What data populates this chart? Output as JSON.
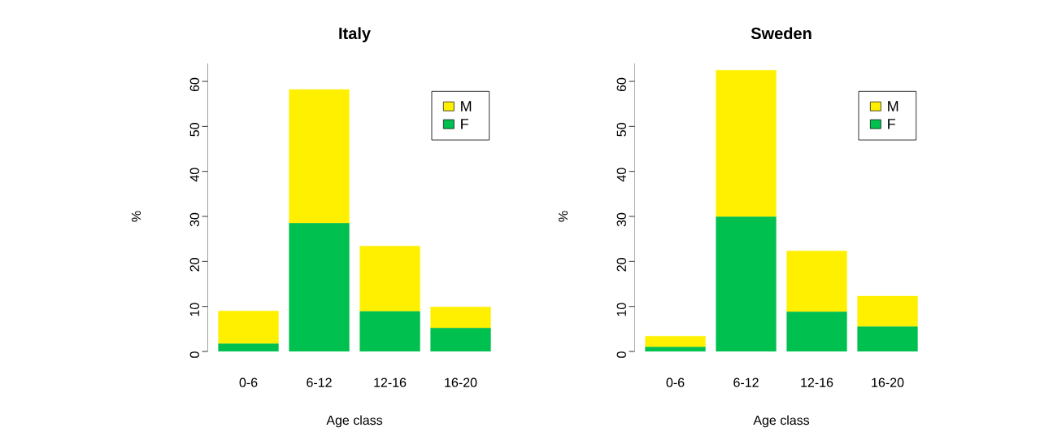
{
  "chart_data": [
    {
      "type": "bar",
      "title": "Italy",
      "xlabel": "Age class",
      "ylabel": "%",
      "categories": [
        "0-6",
        "6-12",
        "12-16",
        "16-20"
      ],
      "stacked": true,
      "legend": "top right",
      "ylim": [
        0,
        64
      ],
      "yticks": [
        0,
        10,
        20,
        30,
        40,
        50,
        60
      ],
      "series": [
        {
          "name": "F",
          "color": "#00c04f",
          "values": [
            1.7,
            28.5,
            8.9,
            5.2
          ]
        },
        {
          "name": "M",
          "color": "#fff000",
          "values": [
            7.3,
            29.7,
            14.5,
            4.7
          ]
        }
      ]
    },
    {
      "type": "bar",
      "title": "Sweden",
      "xlabel": "Age class",
      "ylabel": "%",
      "categories": [
        "0-6",
        "6-12",
        "12-16",
        "16-20"
      ],
      "stacked": true,
      "legend": "top right",
      "ylim": [
        0,
        64
      ],
      "yticks": [
        0,
        10,
        20,
        30,
        40,
        50,
        60
      ],
      "series": [
        {
          "name": "F",
          "color": "#00c04f",
          "values": [
            1.0,
            29.9,
            8.8,
            5.5
          ]
        },
        {
          "name": "M",
          "color": "#fff000",
          "values": [
            2.4,
            32.6,
            13.5,
            6.8
          ]
        }
      ]
    }
  ]
}
